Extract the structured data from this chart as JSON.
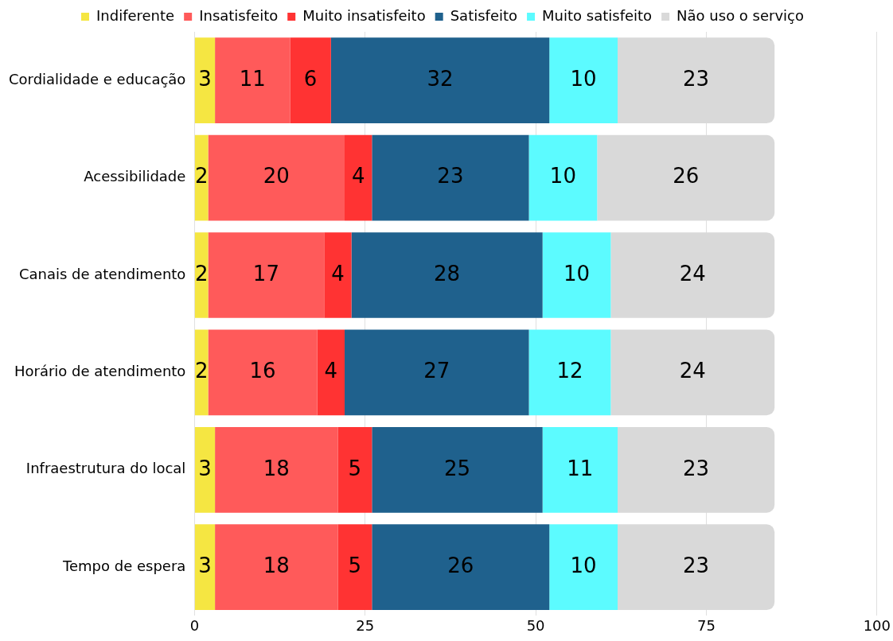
{
  "chart_data": {
    "type": "bar",
    "orientation": "horizontal",
    "stacked": true,
    "data_labels": true,
    "grid": "x",
    "legend": "top",
    "categories": [
      "Cordialidade e educação",
      "Acessibilidade",
      "Canais de atendimento",
      "Horário de atendimento",
      "Infraestrutura do local",
      "Tempo de espera"
    ],
    "xlim": [
      0,
      100
    ],
    "xticks": [
      0,
      25,
      50,
      75,
      100
    ],
    "series": [
      {
        "name": "Indiferente",
        "color": "#f5e642",
        "values": [
          3,
          2,
          2,
          2,
          3,
          3
        ]
      },
      {
        "name": "Insatisfeito",
        "color": "#ff5a5a",
        "values": [
          11,
          20,
          17,
          16,
          18,
          18
        ]
      },
      {
        "name": "Muito insatisfeito",
        "color": "#ff3333",
        "values": [
          6,
          4,
          4,
          4,
          5,
          5
        ]
      },
      {
        "name": "Satisfeito",
        "color": "#1f618d",
        "values": [
          32,
          23,
          28,
          27,
          25,
          26
        ]
      },
      {
        "name": "Muito satisfeito",
        "color": "#5cfbff",
        "values": [
          10,
          10,
          10,
          12,
          11,
          10
        ]
      },
      {
        "name": "Não uso o serviço",
        "color": "#d9d9d9",
        "values": [
          23,
          26,
          24,
          24,
          23,
          23
        ]
      }
    ]
  }
}
